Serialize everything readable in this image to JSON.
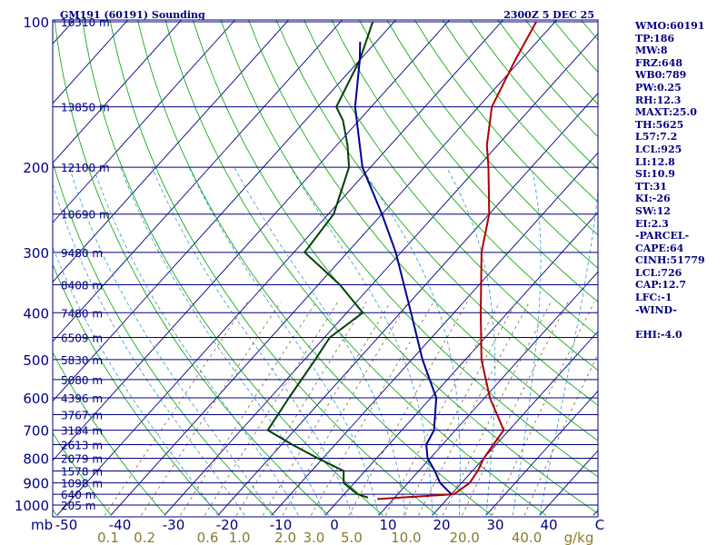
{
  "chart_data": {
    "type": "line",
    "title": "GM191 (60191) Sounding",
    "timestamp": "2300Z  5 DEC 25",
    "pressure_axis_label": "mb",
    "pressure_ticks": [
      "100",
      "200",
      "300",
      "400",
      "500",
      "600",
      "700",
      "800",
      "900",
      "1000"
    ],
    "temp_axis_label": "C",
    "temp_ticks": [
      "-50",
      "-40",
      "-30",
      "-20",
      "-10",
      "0",
      "10",
      "20",
      "30",
      "40"
    ],
    "mixing_ratio_label": "g/kg",
    "mixing_ratio_ticks": [
      "0.1",
      "0.2",
      "0.6",
      "1.0",
      "2.0",
      "3.0",
      "5.0",
      "10.0",
      "20.0",
      "40.0"
    ],
    "height_labels": [
      {
        "p": 100,
        "label": "16310 m"
      },
      {
        "p": 150,
        "label": "13850 m"
      },
      {
        "p": 200,
        "label": "12100 m"
      },
      {
        "p": 250,
        "label": "10690 m"
      },
      {
        "p": 300,
        "label": "9480 m"
      },
      {
        "p": 350,
        "label": "8408 m"
      },
      {
        "p": 400,
        "label": "7480 m"
      },
      {
        "p": 450,
        "label": "6509 m"
      },
      {
        "p": 500,
        "label": "5830 m"
      },
      {
        "p": 550,
        "label": "5080 m"
      },
      {
        "p": 600,
        "label": "4396 m"
      },
      {
        "p": 650,
        "label": "3767 m"
      },
      {
        "p": 700,
        "label": "3184 m"
      },
      {
        "p": 750,
        "label": "2613 m"
      },
      {
        "p": 800,
        "label": "2079 m"
      },
      {
        "p": 850,
        "label": "1578 m"
      },
      {
        "p": 900,
        "label": "1098 m"
      },
      {
        "p": 950,
        "label": "640 m"
      },
      {
        "p": 1000,
        "label": "205 m"
      }
    ],
    "series": [
      {
        "name": "temperature",
        "color": "#b00000",
        "points": [
          [
            972,
            7.0
          ],
          [
            950,
            20.5
          ],
          [
            900,
            21.5
          ],
          [
            850,
            21.0
          ],
          [
            800,
            20.0
          ],
          [
            750,
            19.5
          ],
          [
            700,
            19.0
          ],
          [
            600,
            11.0
          ],
          [
            500,
            3.0
          ],
          [
            400,
            -5.0
          ],
          [
            300,
            -15.0
          ],
          [
            250,
            -20.0
          ],
          [
            200,
            -28.0
          ],
          [
            180,
            -32.0
          ],
          [
            150,
            -37.5
          ],
          [
            120,
            -41.0
          ],
          [
            100,
            -43.5
          ]
        ]
      },
      {
        "name": "dewpoint",
        "color": "#004000",
        "points": [
          [
            965,
            5.0
          ],
          [
            950,
            2.5
          ],
          [
            900,
            -2.0
          ],
          [
            850,
            -4.0
          ],
          [
            800,
            -11.0
          ],
          [
            750,
            -18.0
          ],
          [
            700,
            -25.0
          ],
          [
            600,
            -26.5
          ],
          [
            500,
            -28.0
          ],
          [
            450,
            -29.0
          ],
          [
            400,
            -27.0
          ],
          [
            350,
            -36.0
          ],
          [
            300,
            -48.0
          ],
          [
            250,
            -49.0
          ],
          [
            200,
            -54.0
          ],
          [
            180,
            -58.0
          ],
          [
            160,
            -63.0
          ],
          [
            150,
            -66.5
          ],
          [
            120,
            -70.0
          ],
          [
            100,
            -74.0
          ]
        ]
      },
      {
        "name": "parcel",
        "color": "#000090",
        "points": [
          [
            950,
            20.0
          ],
          [
            900,
            16.0
          ],
          [
            850,
            13.0
          ],
          [
            800,
            9.5
          ],
          [
            750,
            7.0
          ],
          [
            700,
            6.0
          ],
          [
            600,
            1.0
          ],
          [
            500,
            -8.0
          ],
          [
            400,
            -18.0
          ],
          [
            300,
            -31.0
          ],
          [
            250,
            -40.0
          ],
          [
            200,
            -51.5
          ],
          [
            150,
            -63.0
          ],
          [
            120,
            -70.0
          ],
          [
            110,
            -73.0
          ]
        ]
      }
    ],
    "indices": {
      "wmo": "WMO:60191",
      "tp": "TP:186",
      "mw": "MW:8",
      "frz": "FRZ:648",
      "wbo": "WB0:789",
      "pw": "PW:0.25",
      "rh": "RH:12.3",
      "maxt": "MAXT:25.0",
      "th": "TH:5625",
      "l57": "L57:7.2",
      "lcl": "LCL:925",
      "li": "LI:12.8",
      "si": "SI:10.9",
      "tt": "TT:31",
      "ki": "KI:-26",
      "sw": "SW:12",
      "ei": "EI:2.3",
      "parcel_header": "-PARCEL-",
      "cape": "CAPE:64",
      "cinh": "CINH:51779",
      "parcel_lcl": "LCL:726",
      "cap": "CAP:12.7",
      "lfc": "LFC:-1",
      "wind_header": "-WIND-",
      "ehi": "EHI:-4.0"
    },
    "colors": {
      "isobar": "#000080",
      "isotherm": "#00007f",
      "dry_adiabat": "#00a000",
      "moist_adiabat": "#3399cc",
      "mixing_ratio": "#7f6a3a",
      "mixing_label": "#8c7a2a"
    }
  }
}
